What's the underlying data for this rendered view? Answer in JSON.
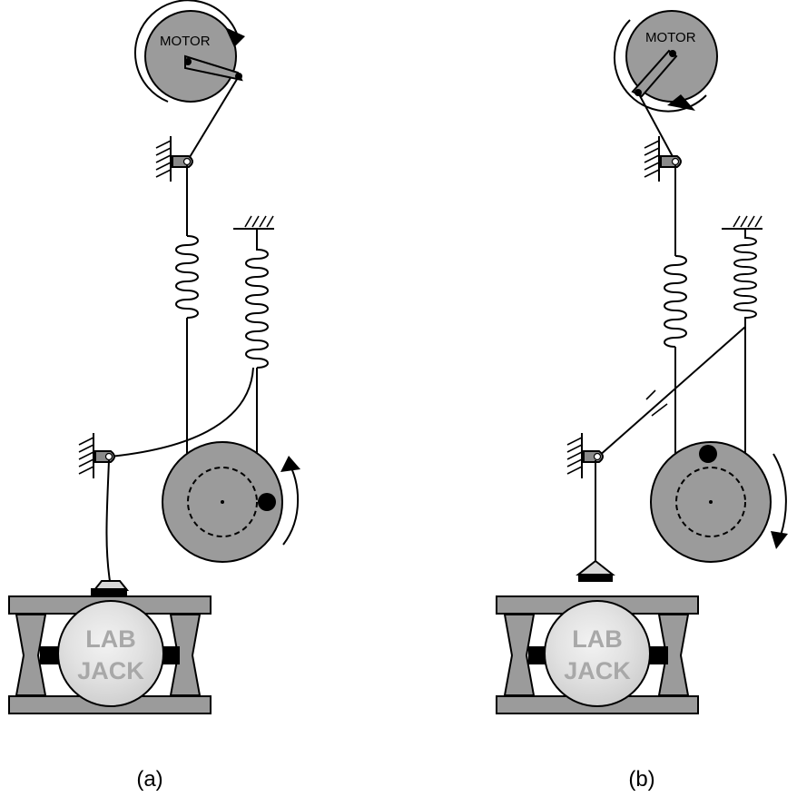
{
  "panels": [
    {
      "caption": "(a)",
      "motor_label": "MOTOR",
      "jack_label_line1": "LAB",
      "jack_label_line2": "JACK"
    },
    {
      "caption": "(b)",
      "motor_label": "MOTOR",
      "jack_label_line1": "LAB",
      "jack_label_line2": "JACK"
    }
  ],
  "colors": {
    "fill_gray": "#9b9b9b",
    "light_gray": "#c4c4c4",
    "marble": "#dcdcdc",
    "stroke": "#000000"
  }
}
